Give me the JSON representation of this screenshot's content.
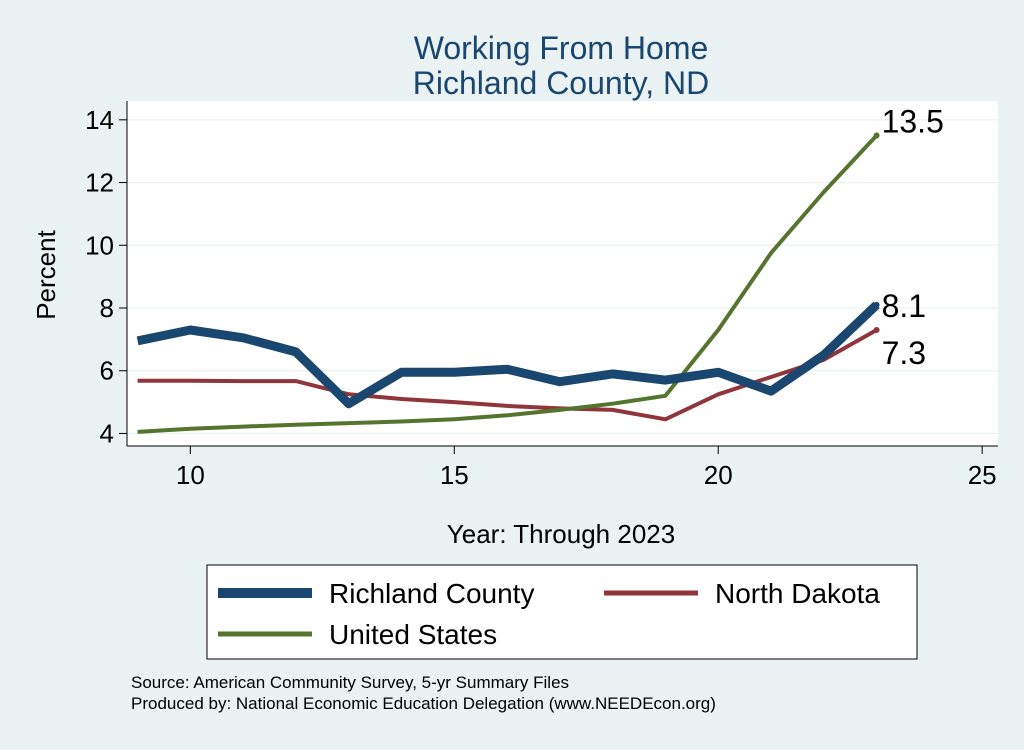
{
  "chart_data": {
    "type": "line",
    "title": "Working From Home",
    "subtitle": "Richland County, ND",
    "xlabel": "Year: Through 2023",
    "ylabel": "Percent",
    "xlim": [
      8.8,
      25.3
    ],
    "ylim": [
      3.6,
      14.6
    ],
    "xticks": [
      10,
      15,
      20,
      25
    ],
    "yticks": [
      4,
      6,
      8,
      10,
      12,
      14
    ],
    "grid": "horizontal",
    "legend_position": "bottom",
    "x": [
      9,
      10,
      11,
      12,
      13,
      14,
      15,
      16,
      17,
      18,
      19,
      20,
      21,
      22,
      23
    ],
    "series": [
      {
        "name": "Richland County",
        "color": "#1a476f",
        "values": [
          6.95,
          7.3,
          7.05,
          6.6,
          4.95,
          5.95,
          5.95,
          6.05,
          5.65,
          5.9,
          5.7,
          5.95,
          5.35,
          6.5,
          8.1
        ],
        "end_label": "8.1"
      },
      {
        "name": "North Dakota",
        "color": "#90353b",
        "values": [
          5.68,
          5.68,
          5.67,
          5.67,
          5.25,
          5.1,
          5.0,
          4.88,
          4.8,
          4.75,
          4.45,
          5.25,
          5.8,
          6.35,
          7.3
        ],
        "end_label": "7.3"
      },
      {
        "name": "United States",
        "color": "#55752f",
        "values": [
          4.05,
          4.15,
          4.22,
          4.28,
          4.33,
          4.38,
          4.45,
          4.58,
          4.75,
          4.95,
          5.2,
          7.3,
          9.75,
          11.7,
          13.5
        ],
        "end_label": "13.5"
      }
    ],
    "source_lines": [
      "Source: American Community Survey, 5-yr Summary Files",
      "Produced by: National Economic Education Delegation (www.NEEDEcon.org)"
    ]
  }
}
